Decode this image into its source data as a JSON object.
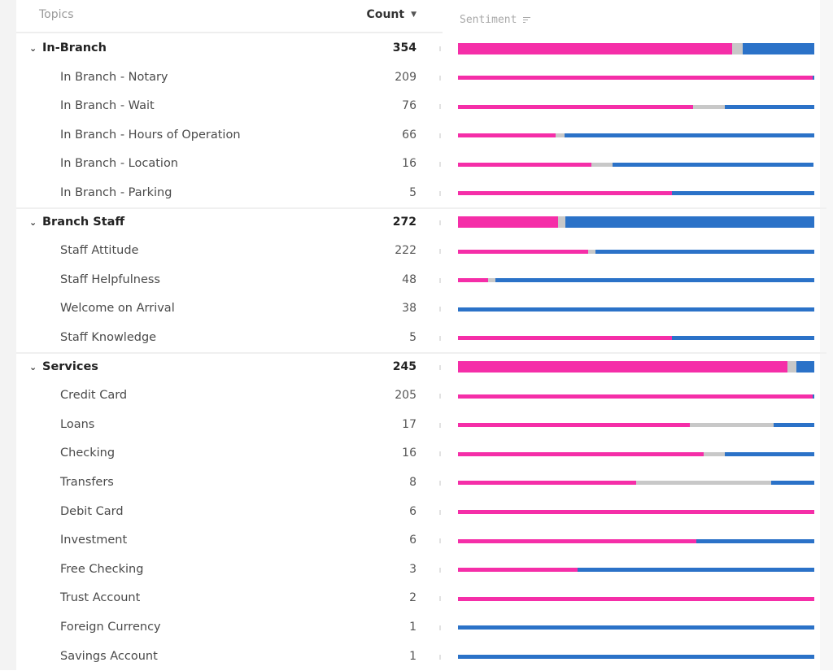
{
  "header": {
    "topics_label": "Topics",
    "count_label": "Count",
    "sentiment_label": "Sentiment"
  },
  "colors": {
    "negative": "#f52ea8",
    "neutral": "#c8c8c8",
    "positive": "#2b72c8"
  },
  "groups": [
    {
      "label": "In-Branch",
      "count": "354",
      "sentiment": [
        0.77,
        0.03,
        0.2
      ],
      "children": [
        {
          "label": "In Branch - Notary",
          "count": "209",
          "sentiment": [
            0.995,
            0.0,
            0.005
          ]
        },
        {
          "label": "In Branch - Wait",
          "count": "76",
          "sentiment": [
            0.66,
            0.09,
            0.25
          ]
        },
        {
          "label": "In Branch - Hours of Operation",
          "count": "66",
          "sentiment": [
            0.275,
            0.025,
            0.7
          ]
        },
        {
          "label": "In Branch - Location",
          "count": "16",
          "sentiment": [
            0.375,
            0.06,
            0.565
          ]
        },
        {
          "label": "In Branch - Parking",
          "count": "5",
          "sentiment": [
            0.6,
            0.0,
            0.4
          ]
        }
      ]
    },
    {
      "label": "Branch Staff",
      "count": "272",
      "sentiment": [
        0.28,
        0.02,
        0.7
      ],
      "children": [
        {
          "label": "Staff Attitude",
          "count": "222",
          "sentiment": [
            0.365,
            0.02,
            0.615
          ]
        },
        {
          "label": "Staff Helpfulness",
          "count": "48",
          "sentiment": [
            0.085,
            0.02,
            0.895
          ]
        },
        {
          "label": "Welcome on Arrival",
          "count": "38",
          "sentiment": [
            0.0,
            0.0,
            1.0
          ]
        },
        {
          "label": "Staff Knowledge",
          "count": "5",
          "sentiment": [
            0.6,
            0.0,
            0.4
          ]
        }
      ]
    },
    {
      "label": "Services",
      "count": "245",
      "sentiment": [
        0.925,
        0.025,
        0.05
      ],
      "children": [
        {
          "label": "Credit Card",
          "count": "205",
          "sentiment": [
            0.995,
            0.0,
            0.005
          ]
        },
        {
          "label": "Loans",
          "count": "17",
          "sentiment": [
            0.65,
            0.235,
            0.115
          ]
        },
        {
          "label": "Checking",
          "count": "16",
          "sentiment": [
            0.69,
            0.06,
            0.25
          ]
        },
        {
          "label": "Transfers",
          "count": "8",
          "sentiment": [
            0.5,
            0.38,
            0.12
          ]
        },
        {
          "label": "Debit Card",
          "count": "6",
          "sentiment": [
            1.0,
            0.0,
            0.0
          ]
        },
        {
          "label": "Investment",
          "count": "6",
          "sentiment": [
            0.67,
            0.0,
            0.33
          ]
        },
        {
          "label": "Free Checking",
          "count": "3",
          "sentiment": [
            0.335,
            0.0,
            0.665
          ]
        },
        {
          "label": "Trust Account",
          "count": "2",
          "sentiment": [
            1.0,
            0.0,
            0.0
          ]
        },
        {
          "label": "Foreign Currency",
          "count": "1",
          "sentiment": [
            0.0,
            0.0,
            1.0
          ]
        },
        {
          "label": "Savings Account",
          "count": "1",
          "sentiment": [
            0.0,
            0.0,
            1.0
          ]
        }
      ]
    }
  ]
}
